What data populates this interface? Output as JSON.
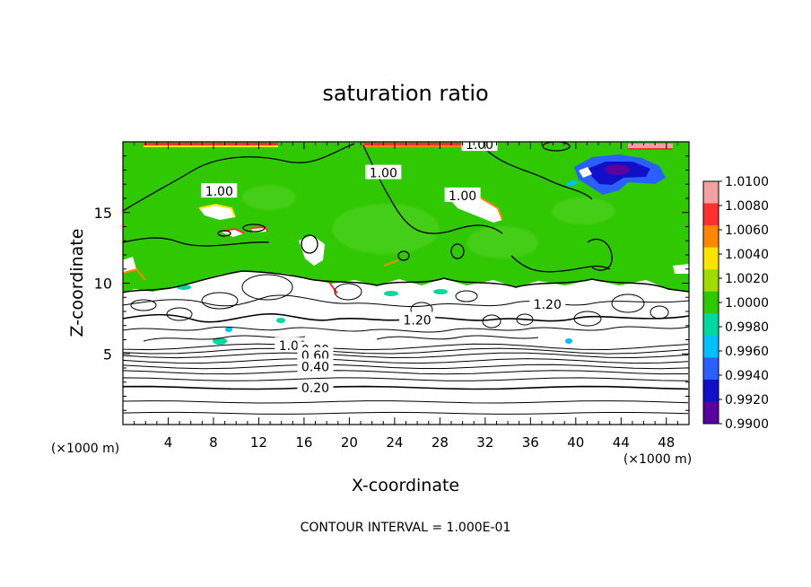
{
  "chart_data": {
    "type": "heatmap",
    "title": "saturation ratio",
    "xlabel": "X-coordinate",
    "ylabel": "Z-coordinate",
    "x_unit": "(×1000 m)",
    "y_unit": "(×1000 m)",
    "xlim": [
      0,
      50
    ],
    "ylim": [
      0,
      20
    ],
    "x_ticks": [
      4,
      8,
      12,
      16,
      20,
      24,
      28,
      32,
      36,
      40,
      44,
      48
    ],
    "y_ticks": [
      5,
      10,
      15
    ],
    "footer": "CONTOUR INTERVAL = 1.000E-01",
    "colorbar": {
      "labels": [
        "1.0100",
        "1.0080",
        "1.0060",
        "1.0040",
        "1.0020",
        "1.0000",
        "0.9980",
        "0.9960",
        "0.9940",
        "0.9920",
        "0.9900"
      ],
      "colors": [
        "#f2a0a0",
        "#ff3030",
        "#ff8800",
        "#ffe400",
        "#9fdc00",
        "#30c800",
        "#00d8a0",
        "#00c0ff",
        "#2a60ff",
        "#1010c8",
        "#5a00a0"
      ]
    },
    "contour_labels": [
      {
        "text": "1.00",
        "x": 31.5,
        "y": 19.8
      },
      {
        "text": "1.00",
        "x": 8.5,
        "y": 16.5
      },
      {
        "text": "1.00",
        "x": 23.0,
        "y": 17.8
      },
      {
        "text": "1.00",
        "x": 30.0,
        "y": 16.2
      },
      {
        "text": "1.20",
        "x": 37.5,
        "y": 8.5
      },
      {
        "text": "1.20",
        "x": 26.0,
        "y": 7.4
      },
      {
        "text": "1.00",
        "x": 15.0,
        "y": 5.6
      },
      {
        "text": "0.80",
        "x": 17.0,
        "y": 5.3
      },
      {
        "text": "0.60",
        "x": 17.0,
        "y": 4.9
      },
      {
        "text": "0.40",
        "x": 17.0,
        "y": 4.1
      },
      {
        "text": "0.20",
        "x": 17.0,
        "y": 2.6
      }
    ],
    "horizontal_contours_z": [
      0.8,
      1.6,
      2.6,
      3.2,
      3.7,
      4.1,
      4.5,
      4.9,
      5.2,
      5.5
    ]
  }
}
